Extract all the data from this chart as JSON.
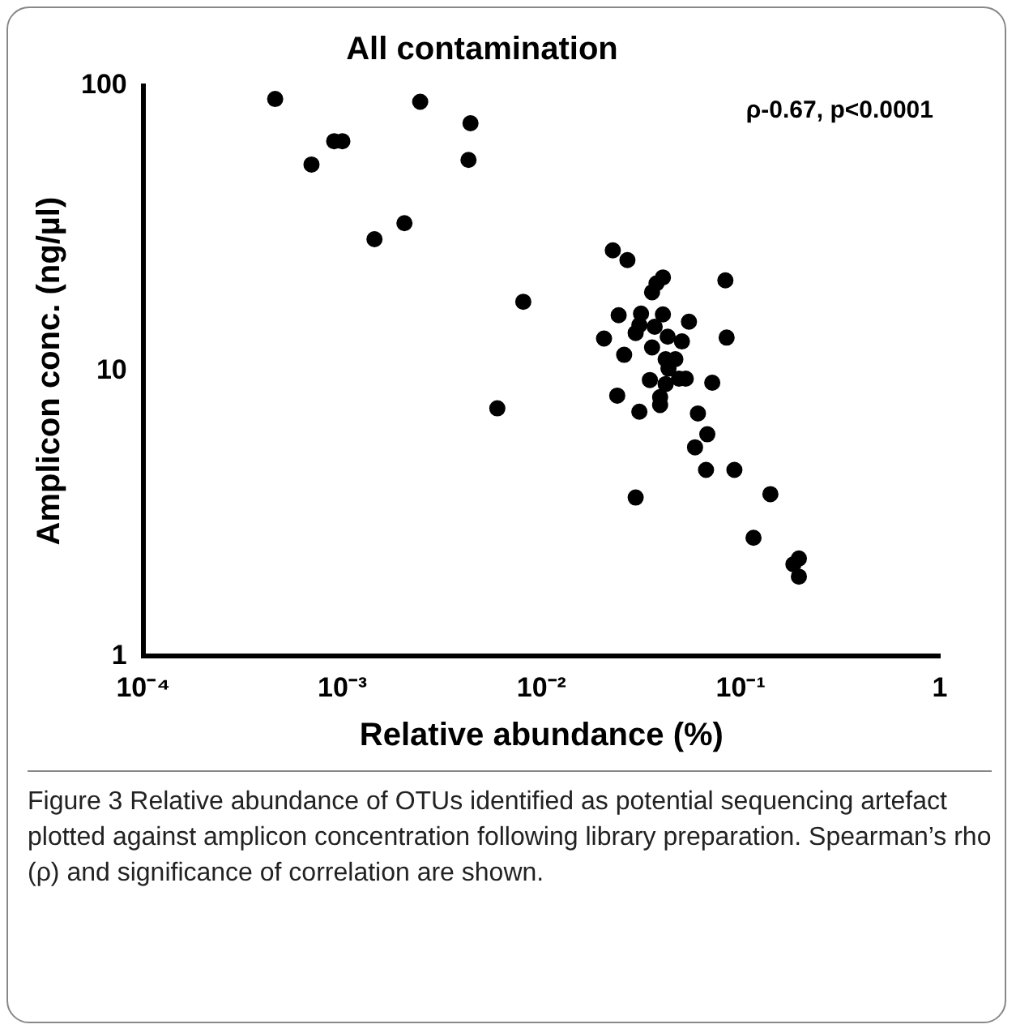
{
  "chart_data": {
    "type": "scatter",
    "title": "All contamination",
    "xlabel": "Relative abundance (%)",
    "ylabel": "Amplicon conc. (ng/µl)",
    "annotations": [
      "ρ-0.67, p<0.0001",
      "Figure 3 Relative abundance of OTUs identified as potential sequencing artefact plotted against amplicon concentration following library preparation. Spearman’s rho (ρ) and significance of correlation are shown."
    ],
    "log": "xy",
    "grid": false,
    "legend": false,
    "marker": "circle",
    "xlim": [
      0.0001,
      1
    ],
    "xticks": [
      {
        "value": 0.0001,
        "label": "10⁻⁴"
      },
      {
        "value": 0.001,
        "label": "10⁻³"
      },
      {
        "value": 0.01,
        "label": "10⁻²"
      },
      {
        "value": 0.1,
        "label": "10⁻¹"
      },
      1
    ],
    "ylim": [
      1,
      100
    ],
    "yticks": [
      1,
      10,
      100
    ],
    "series": [
      {
        "color": "#000000",
        "x": [
          0.00046,
          0.0007,
          0.00091,
          0.001,
          0.00145,
          0.00205,
          0.00246,
          0.0044,
          0.0043,
          0.0081,
          0.006,
          0.0228,
          0.027,
          0.0407,
          0.0378,
          0.0359,
          0.0838,
          0.0244,
          0.0316,
          0.0407,
          0.055,
          0.0206,
          0.0297,
          0.0348,
          0.0394,
          0.0507,
          0.085,
          0.026,
          0.0359,
          0.042,
          0.047,
          0.0434,
          0.035,
          0.042,
          0.049,
          0.053,
          0.072,
          0.024,
          0.0394,
          0.0394,
          0.031,
          0.061,
          0.068,
          0.059,
          0.067,
          0.093,
          0.141,
          0.0297,
          0.116,
          0.196,
          0.184,
          0.196,
          0.031,
          0.037,
          0.043
        ],
        "values": [
          90,
          53,
          64,
          64,
          29,
          33,
          88,
          74,
          55,
          17.5,
          7.4,
          26.5,
          24.5,
          21.3,
          20.3,
          18.9,
          20.8,
          15.7,
          15.9,
          15.8,
          14.9,
          13.0,
          13.6,
          null,
          null,
          12.7,
          13.1,
          11.4,
          12.1,
          11.0,
          11.0,
          10.2,
          9.3,
          9.0,
          9.4,
          9.4,
          9.1,
          8.2,
          8.1,
          7.6,
          7.2,
          7.1,
          6.0,
          5.4,
          4.5,
          4.5,
          3.7,
          3.6,
          2.6,
          2.2,
          2.1,
          1.9,
          14.5,
          14.3,
          13.2
        ]
      }
    ]
  }
}
